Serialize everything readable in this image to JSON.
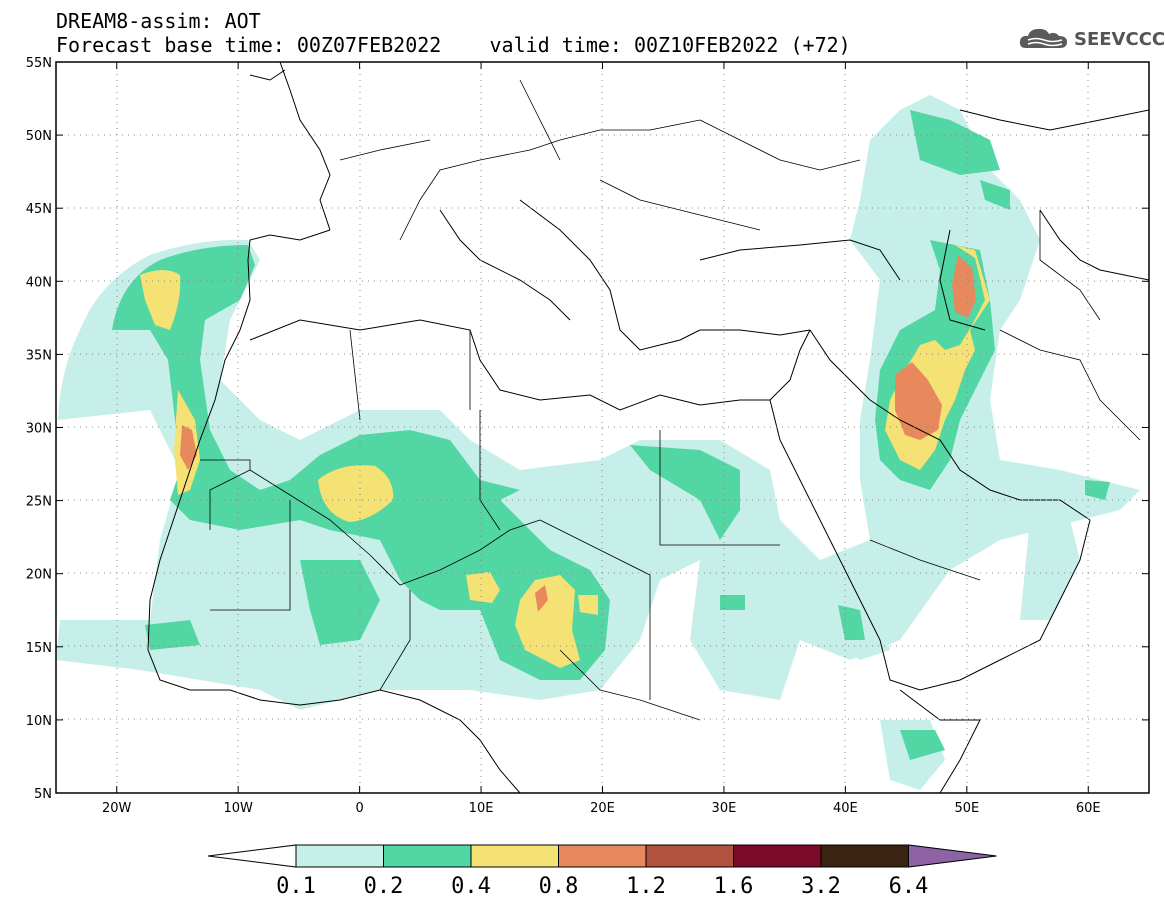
{
  "title": {
    "line1": "DREAM8-assim: AOT",
    "base_time": "Forecast base time: 00Z07FEB2022",
    "valid_time": "valid time: 00Z10FEB2022 (+72)"
  },
  "logo": {
    "icon": "cloud-icon",
    "text": "SEEVCCC"
  },
  "map": {
    "lon_range": [
      -25,
      65
    ],
    "lat_range": [
      5,
      55
    ],
    "lat_ticks": [
      {
        "value": 55,
        "label": "55N"
      },
      {
        "value": 50,
        "label": "50N"
      },
      {
        "value": 45,
        "label": "45N"
      },
      {
        "value": 40,
        "label": "40N"
      },
      {
        "value": 35,
        "label": "35N"
      },
      {
        "value": 30,
        "label": "30N"
      },
      {
        "value": 25,
        "label": "25N"
      },
      {
        "value": 20,
        "label": "20N"
      },
      {
        "value": 15,
        "label": "15N"
      },
      {
        "value": 10,
        "label": "10N"
      },
      {
        "value": 5,
        "label": "5N"
      }
    ],
    "lon_ticks": [
      {
        "value": -20,
        "label": "20W"
      },
      {
        "value": -10,
        "label": "10W"
      },
      {
        "value": 0,
        "label": "0"
      },
      {
        "value": 10,
        "label": "10E"
      },
      {
        "value": 20,
        "label": "20E"
      },
      {
        "value": 30,
        "label": "30E"
      },
      {
        "value": 40,
        "label": "40E"
      },
      {
        "value": 50,
        "label": "50E"
      },
      {
        "value": 60,
        "label": "60E"
      }
    ],
    "grid": "dotted"
  },
  "colorbar": {
    "labels": [
      "0.1",
      "0.2",
      "0.4",
      "0.8",
      "1.2",
      "1.6",
      "3.2",
      "6.4"
    ],
    "colors": [
      "#c6efe9",
      "#52d6a3",
      "#f5e275",
      "#e8895d",
      "#b0523d",
      "#7b0a2a",
      "#3a2310"
    ],
    "under_color": "#ffffff",
    "over_color": "#8e63a6"
  }
}
